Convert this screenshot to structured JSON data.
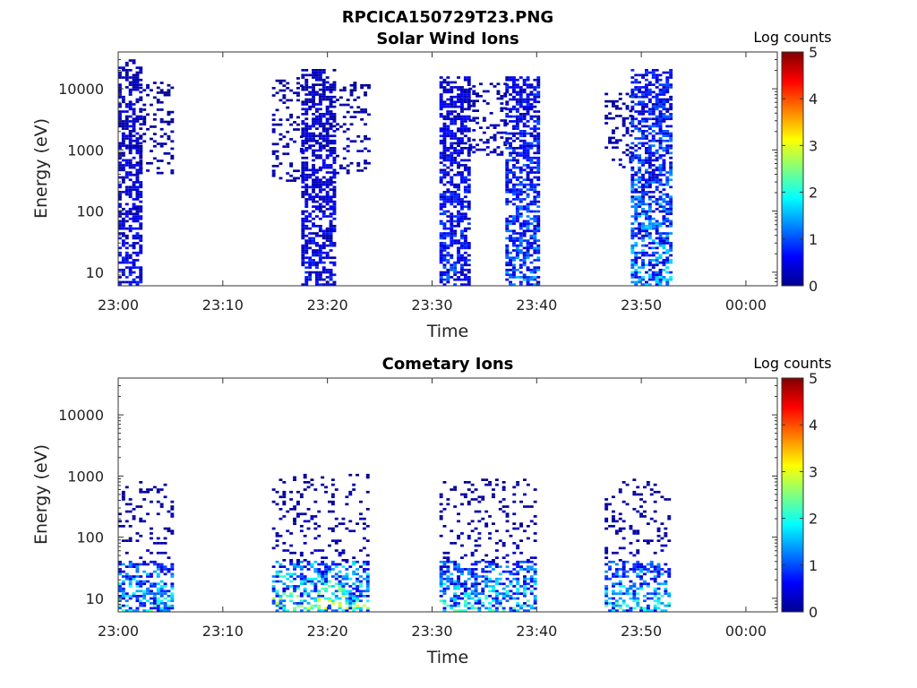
{
  "figure_title": "RPCICA150729T23.PNG",
  "chart_data": [
    {
      "type": "heatmap",
      "title": "Solar Wind Ions",
      "xlabel": "Time",
      "ylabel": "Energy (eV)",
      "x_ticks": [
        "23:00",
        "23:10",
        "23:20",
        "23:30",
        "23:40",
        "23:50",
        "00:00"
      ],
      "x_range_minutes": [
        0,
        63
      ],
      "y_scale": "log",
      "y_ticks": [
        10,
        100,
        1000,
        10000
      ],
      "y_range": [
        6,
        40000
      ],
      "colorbar": {
        "label": "Log counts",
        "ticks": [
          0,
          1,
          2,
          3,
          4,
          5
        ],
        "range": [
          0,
          5
        ]
      },
      "bursts": [
        {
          "t_start": 0.0,
          "t_end": 2.0,
          "e_min": 6,
          "e_max": 30000,
          "density": 0.6,
          "peak_log_counts": 0.9
        },
        {
          "t_start": 2.0,
          "t_end": 5.0,
          "e_min": 400,
          "e_max": 12000,
          "density": 0.25,
          "peak_log_counts": 0.4
        },
        {
          "t_start": 14.7,
          "t_end": 17.5,
          "e_min": 300,
          "e_max": 15000,
          "density": 0.25,
          "peak_log_counts": 0.4
        },
        {
          "t_start": 17.5,
          "t_end": 20.8,
          "e_min": 6,
          "e_max": 20000,
          "density": 0.6,
          "peak_log_counts": 0.9
        },
        {
          "t_start": 20.8,
          "t_end": 24.0,
          "e_min": 400,
          "e_max": 12000,
          "density": 0.22,
          "peak_log_counts": 0.4
        },
        {
          "t_start": 30.7,
          "t_end": 33.5,
          "e_min": 6,
          "e_max": 15000,
          "density": 0.6,
          "peak_log_counts": 1.2
        },
        {
          "t_start": 33.5,
          "t_end": 37.0,
          "e_min": 800,
          "e_max": 12000,
          "density": 0.3,
          "peak_log_counts": 0.5
        },
        {
          "t_start": 37.0,
          "t_end": 40.0,
          "e_min": 6,
          "e_max": 15000,
          "density": 0.6,
          "peak_log_counts": 1.6
        },
        {
          "t_start": 46.5,
          "t_end": 49.0,
          "e_min": 500,
          "e_max": 9000,
          "density": 0.25,
          "peak_log_counts": 0.4
        },
        {
          "t_start": 49.0,
          "t_end": 52.8,
          "e_min": 6,
          "e_max": 20000,
          "density": 0.6,
          "peak_log_counts": 1.9
        }
      ]
    },
    {
      "type": "heatmap",
      "title": "Cometary Ions",
      "xlabel": "Time",
      "ylabel": "Energy (eV)",
      "x_ticks": [
        "23:00",
        "23:10",
        "23:20",
        "23:30",
        "23:40",
        "23:50",
        "00:00"
      ],
      "x_range_minutes": [
        0,
        63
      ],
      "y_scale": "log",
      "y_ticks": [
        10,
        100,
        1000,
        10000
      ],
      "y_range": [
        6,
        40000
      ],
      "colorbar": {
        "label": "Log counts",
        "ticks": [
          0,
          1,
          2,
          3,
          4,
          5
        ],
        "range": [
          0,
          5
        ]
      },
      "bursts": [
        {
          "t_start": 0.0,
          "t_end": 5.0,
          "e_min": 6,
          "e_max": 40,
          "density": 0.55,
          "peak_log_counts": 2.6
        },
        {
          "t_start": 0.0,
          "t_end": 5.0,
          "e_min": 40,
          "e_max": 800,
          "density": 0.15,
          "peak_log_counts": 0.4
        },
        {
          "t_start": 14.7,
          "t_end": 24.0,
          "e_min": 6,
          "e_max": 40,
          "density": 0.5,
          "peak_log_counts": 3.3
        },
        {
          "t_start": 14.7,
          "t_end": 24.0,
          "e_min": 40,
          "e_max": 1000,
          "density": 0.15,
          "peak_log_counts": 0.4
        },
        {
          "t_start": 30.7,
          "t_end": 40.0,
          "e_min": 6,
          "e_max": 40,
          "density": 0.5,
          "peak_log_counts": 2.6
        },
        {
          "t_start": 30.7,
          "t_end": 40.0,
          "e_min": 40,
          "e_max": 900,
          "density": 0.15,
          "peak_log_counts": 0.4
        },
        {
          "t_start": 46.5,
          "t_end": 52.8,
          "e_min": 6,
          "e_max": 40,
          "density": 0.5,
          "peak_log_counts": 2.6
        },
        {
          "t_start": 46.5,
          "t_end": 52.8,
          "e_min": 40,
          "e_max": 900,
          "density": 0.15,
          "peak_log_counts": 0.4
        }
      ]
    }
  ]
}
